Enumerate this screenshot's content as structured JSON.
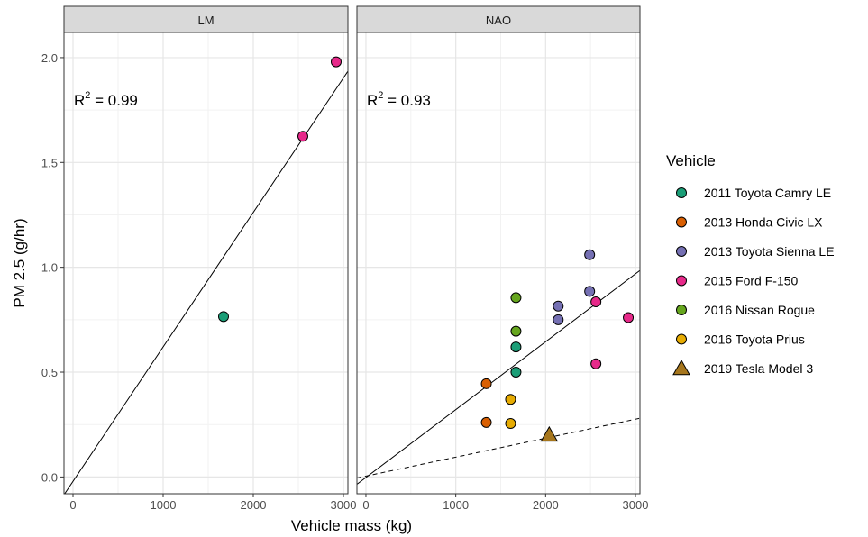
{
  "chart_data": {
    "type": "scatter",
    "xlabel": "Vehicle mass (kg)",
    "ylabel": "PM 2.5 (g/hr)",
    "xlim": [
      -100,
      3050
    ],
    "ylim": [
      -0.08,
      2.12
    ],
    "x_ticks": [
      0,
      1000,
      2000,
      3000
    ],
    "y_ticks": [
      0.0,
      0.5,
      1.0,
      1.5,
      2.0
    ],
    "x_tick_labels": [
      "0",
      "1000",
      "2000",
      "3000"
    ],
    "y_tick_labels": [
      "0.0",
      "0.5",
      "1.0",
      "1.5",
      "2.0"
    ],
    "grid": true,
    "legend_title": "Vehicle",
    "legend_position": "right",
    "legend": [
      {
        "label": "2011 Toyota Camry LE",
        "color": "#1B9E77",
        "shape": "circle"
      },
      {
        "label": "2013 Honda Civic LX",
        "color": "#D95F02",
        "shape": "circle"
      },
      {
        "label": "2013 Toyota Sienna LE",
        "color": "#7570B3",
        "shape": "circle"
      },
      {
        "label": "2015 Ford F-150",
        "color": "#E7298A",
        "shape": "circle"
      },
      {
        "label": "2016 Nissan Rogue",
        "color": "#66A61E",
        "shape": "circle"
      },
      {
        "label": "2016 Toyota Prius",
        "color": "#E6AB02",
        "shape": "circle"
      },
      {
        "label": "2019 Tesla Model 3",
        "color": "#A6761D",
        "shape": "triangle"
      }
    ],
    "panels": [
      {
        "strip": "LM",
        "r2_base": "R",
        "r2_sup": "2",
        "r2_rest": " = 0.99",
        "fit_line": {
          "x0": -100,
          "y0": -0.085,
          "x1": 3050,
          "y1": 1.935,
          "style": "solid"
        },
        "points": [
          {
            "vehicle": 0,
            "x": 1670,
            "y": 0.765
          },
          {
            "vehicle": 3,
            "x": 2550,
            "y": 1.625
          },
          {
            "vehicle": 3,
            "x": 2920,
            "y": 1.98
          }
        ]
      },
      {
        "strip": "NAO",
        "r2_base": "R",
        "r2_sup": "2",
        "r2_rest": " = 0.93",
        "fit_line": {
          "x0": -100,
          "y0": -0.035,
          "x1": 3050,
          "y1": 0.985,
          "style": "solid"
        },
        "ref_line": {
          "x0": -100,
          "y0": -0.005,
          "x1": 3050,
          "y1": 0.28,
          "style": "dashed"
        },
        "points": [
          {
            "vehicle": 0,
            "x": 1670,
            "y": 0.62
          },
          {
            "vehicle": 0,
            "x": 1670,
            "y": 0.5
          },
          {
            "vehicle": 1,
            "x": 1340,
            "y": 0.445
          },
          {
            "vehicle": 1,
            "x": 1340,
            "y": 0.26
          },
          {
            "vehicle": 2,
            "x": 2140,
            "y": 0.815
          },
          {
            "vehicle": 2,
            "x": 2140,
            "y": 0.75
          },
          {
            "vehicle": 2,
            "x": 2490,
            "y": 1.06
          },
          {
            "vehicle": 2,
            "x": 2490,
            "y": 0.885
          },
          {
            "vehicle": 3,
            "x": 2560,
            "y": 0.835
          },
          {
            "vehicle": 3,
            "x": 2560,
            "y": 0.54
          },
          {
            "vehicle": 3,
            "x": 2920,
            "y": 0.76
          },
          {
            "vehicle": 4,
            "x": 1670,
            "y": 0.855
          },
          {
            "vehicle": 4,
            "x": 1670,
            "y": 0.695
          },
          {
            "vehicle": 5,
            "x": 1610,
            "y": 0.37
          },
          {
            "vehicle": 5,
            "x": 1610,
            "y": 0.255
          },
          {
            "vehicle": 6,
            "x": 2040,
            "y": 0.2
          }
        ]
      }
    ]
  }
}
